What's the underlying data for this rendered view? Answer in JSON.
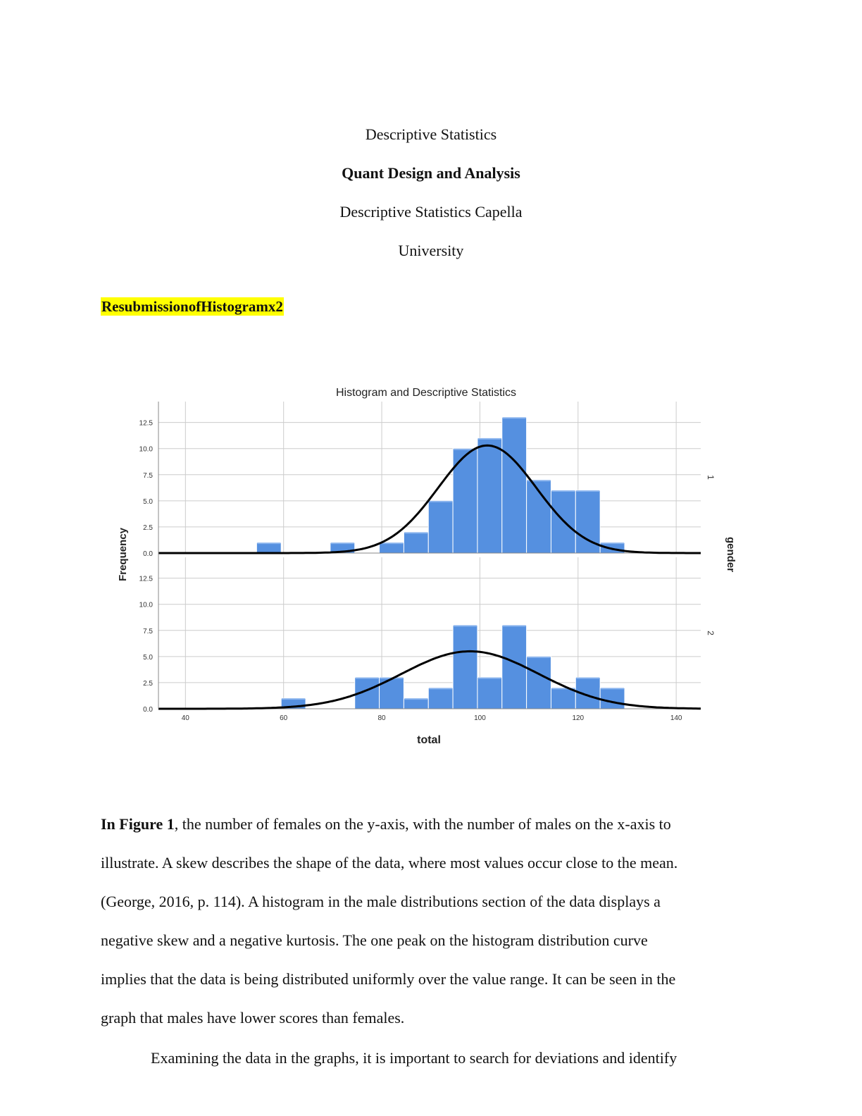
{
  "header": {
    "line1": "Descriptive Statistics",
    "line2": "Quant Design and Analysis",
    "line3": "Descriptive Statistics Capella",
    "line4": "University"
  },
  "highlight_note": "ResubmissionofHistogramx2",
  "body": {
    "p1_lead": "In Figure 1",
    "p1_line1_rest": ", the number of females on the y-axis, with the number of males on the x-axis to",
    "p1_line2": "illustrate. A skew describes the shape of the data, where most values occur close to the mean.",
    "p1_line3": "(George, 2016, p. 114). A histogram in the male distributions section of the data displays a",
    "p1_line4": "negative skew and a negative kurtosis. The one peak on the histogram distribution curve",
    "p1_line5": "implies that the data is being distributed uniformly over the value range. It can be seen in the",
    "p1_line6": "graph that males have lower scores than females.",
    "p2_line1": "Examining the data in the graphs, it is important to search for deviations and identify"
  },
  "chart_data": {
    "type": "bar",
    "title": "Histogram and Descriptive Statistics",
    "xlabel": "total",
    "ylabel": "Frequency",
    "panel_label": "gender",
    "xlim": [
      34.5,
      145
    ],
    "ylim": [
      0,
      14.5
    ],
    "x_ticks": [
      "40",
      "60",
      "80",
      "100",
      "120",
      "140"
    ],
    "y_ticks": [
      "0.0",
      "2.5",
      "5.0",
      "7.5",
      "10.0",
      "12.5"
    ],
    "bin_width": 5,
    "grid": true,
    "colors": {
      "bar": "#5590e0",
      "bar_top": "#8ab4ee",
      "curve": "#000000",
      "grid": "#cccccc"
    },
    "panels": [
      {
        "name": "1",
        "bins": [
          {
            "x": 57,
            "count": 1
          },
          {
            "x": 72,
            "count": 1
          },
          {
            "x": 82,
            "count": 1
          },
          {
            "x": 87,
            "count": 2
          },
          {
            "x": 92,
            "count": 5
          },
          {
            "x": 97,
            "count": 10
          },
          {
            "x": 102,
            "count": 11
          },
          {
            "x": 107,
            "count": 13
          },
          {
            "x": 112,
            "count": 7
          },
          {
            "x": 117,
            "count": 6
          },
          {
            "x": 122,
            "count": 6
          },
          {
            "x": 127,
            "count": 1
          }
        ],
        "curve": {
          "mean": 101.5,
          "peak": 10.3,
          "sd": 10
        }
      },
      {
        "name": "2",
        "bins": [
          {
            "x": 62,
            "count": 1
          },
          {
            "x": 77,
            "count": 3
          },
          {
            "x": 82,
            "count": 3
          },
          {
            "x": 87,
            "count": 1
          },
          {
            "x": 92,
            "count": 2
          },
          {
            "x": 97,
            "count": 8
          },
          {
            "x": 102,
            "count": 3
          },
          {
            "x": 107,
            "count": 8
          },
          {
            "x": 112,
            "count": 5
          },
          {
            "x": 117,
            "count": 2
          },
          {
            "x": 122,
            "count": 3
          },
          {
            "x": 127,
            "count": 2
          }
        ],
        "curve": {
          "mean": 98,
          "peak": 5.5,
          "sd": 14
        }
      }
    ]
  }
}
